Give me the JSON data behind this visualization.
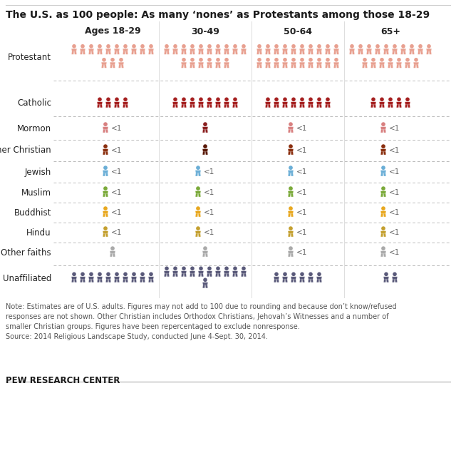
{
  "title": "The U.S. as 100 people: As many ‘nones’ as Protestants among those 18-29",
  "age_groups": [
    "Ages 18-29",
    "30-49",
    "50-64",
    "65+"
  ],
  "religions": [
    "Protestant",
    "Catholic",
    "Mormon",
    "Other Christian",
    "Jewish",
    "Muslim",
    "Buddhist",
    "Hindu",
    "Other faiths",
    "Unaffiliated"
  ],
  "counts": {
    "Protestant": [
      13,
      16,
      20,
      17
    ],
    "Catholic": [
      4,
      8,
      8,
      5
    ],
    "Mormon": [
      0,
      1,
      0,
      0
    ],
    "Other Christian": [
      0,
      1,
      0,
      0
    ],
    "Jewish": [
      0,
      0,
      0,
      0
    ],
    "Muslim": [
      0,
      0,
      0,
      0
    ],
    "Buddhist": [
      0,
      0,
      0,
      0
    ],
    "Hindu": [
      0,
      0,
      0,
      0
    ],
    "Other faiths": [
      0,
      0,
      0,
      0
    ],
    "Unaffiliated": [
      10,
      11,
      6,
      2
    ]
  },
  "lt1": {
    "Protestant": [
      false,
      false,
      false,
      false
    ],
    "Catholic": [
      false,
      false,
      false,
      false
    ],
    "Mormon": [
      true,
      false,
      true,
      true
    ],
    "Other Christian": [
      true,
      false,
      true,
      true
    ],
    "Jewish": [
      true,
      true,
      true,
      true
    ],
    "Muslim": [
      true,
      true,
      true,
      true
    ],
    "Buddhist": [
      true,
      true,
      true,
      true
    ],
    "Hindu": [
      true,
      true,
      true,
      true
    ],
    "Other faiths": [
      false,
      false,
      true,
      true
    ],
    "Unaffiliated": [
      false,
      false,
      false,
      false
    ]
  },
  "show_icon_no_text": {
    "Protestant": [
      false,
      false,
      false,
      false
    ],
    "Catholic": [
      false,
      false,
      false,
      false
    ],
    "Mormon": [
      false,
      true,
      false,
      false
    ],
    "Other Christian": [
      false,
      true,
      false,
      false
    ],
    "Jewish": [
      false,
      false,
      false,
      false
    ],
    "Muslim": [
      false,
      false,
      false,
      false
    ],
    "Buddhist": [
      false,
      false,
      false,
      false
    ],
    "Hindu": [
      false,
      false,
      false,
      false
    ],
    "Other faiths": [
      true,
      true,
      false,
      false
    ],
    "Unaffiliated": [
      false,
      false,
      false,
      false
    ]
  },
  "colors": {
    "Protestant": "#E8A090",
    "Catholic": "#A52020",
    "Mormon": "#D88080",
    "Other Christian": "#8B3010",
    "Jewish": "#6AAED6",
    "Muslim": "#7BAA3A",
    "Buddhist": "#E8A820",
    "Hindu": "#C4A030",
    "Other faiths": "#AAAAAA",
    "Unaffiliated": "#5A5A7A"
  },
  "special_colors": {
    "Mormon_1": "#8B2020",
    "Other Christian_1": "#5A1A08"
  },
  "note": "Note: Estimates are of U.S. adults. Figures may not add to 100 due to rounding and because don’t know/refused\nresponses are not shown. Other Christian includes Orthodox Christians, Jehovah’s Witnesses and a number of\nsmaller Christian groups. Figures have been repercentaged to exclude nonresponse.\nSource: 2014 Religious Landscape Study, conducted June 4-Sept. 30, 2014.",
  "pew": "PEW RESEARCH CENTER"
}
